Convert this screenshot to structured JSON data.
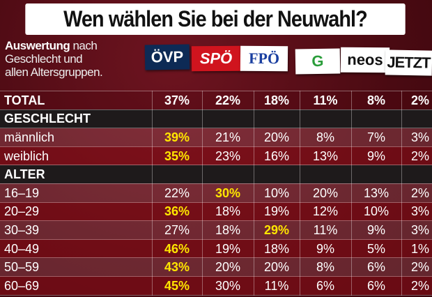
{
  "title": "Wen wählen Sie bei der Neuwahl?",
  "subtitle": {
    "bold": "Auswertung",
    "rest_line1": " nach",
    "line2": "Geschlecht und",
    "line3": "allen Altersgruppen."
  },
  "parties": [
    {
      "name": "ÖVP",
      "bg": "#0d2a55",
      "fg": "#ffffff"
    },
    {
      "name": "SPÖ",
      "bg": "#d0141e",
      "fg": "#ffffff"
    },
    {
      "name": "FPÖ",
      "bg": "#ffffff",
      "fg": "#1a3fa0"
    },
    {
      "name": "G",
      "bg": "#ffffff",
      "fg": "#2a9d3a"
    },
    {
      "name": "neos",
      "bg": "#ffffff",
      "fg": "#111111"
    },
    {
      "name": "JETZT",
      "bg": "#ffffff",
      "fg": "#111111"
    }
  ],
  "highlight_color": "#ffe600",
  "rows": [
    {
      "label": "TOTAL",
      "type": "total",
      "values": [
        "37%",
        "22%",
        "18%",
        "11%",
        "8%",
        "2%"
      ],
      "highlight": -1
    },
    {
      "label": "GESCHLECHT",
      "type": "section",
      "values": [
        "",
        "",
        "",
        "",
        "",
        ""
      ],
      "highlight": -1
    },
    {
      "label": "männlich",
      "type": "light",
      "values": [
        "39%",
        "21%",
        "20%",
        "8%",
        "7%",
        "3%"
      ],
      "highlight": 0
    },
    {
      "label": "weiblich",
      "type": "dark",
      "values": [
        "35%",
        "23%",
        "16%",
        "13%",
        "9%",
        "2%"
      ],
      "highlight": 0
    },
    {
      "label": "ALTER",
      "type": "section",
      "values": [
        "",
        "",
        "",
        "",
        "",
        ""
      ],
      "highlight": -1
    },
    {
      "label": "16–19",
      "type": "light",
      "values": [
        "22%",
        "30%",
        "10%",
        "20%",
        "13%",
        "2%"
      ],
      "highlight": 1
    },
    {
      "label": "20–29",
      "type": "dark",
      "values": [
        "36%",
        "18%",
        "19%",
        "12%",
        "10%",
        "3%"
      ],
      "highlight": 0
    },
    {
      "label": "30–39",
      "type": "light",
      "values": [
        "27%",
        "18%",
        "29%",
        "11%",
        "9%",
        "3%"
      ],
      "highlight": 2
    },
    {
      "label": "40–49",
      "type": "dark",
      "values": [
        "46%",
        "19%",
        "18%",
        "9%",
        "5%",
        "1%"
      ],
      "highlight": 0
    },
    {
      "label": "50–59",
      "type": "light",
      "values": [
        "43%",
        "20%",
        "20%",
        "8%",
        "6%",
        "2%"
      ],
      "highlight": 0
    },
    {
      "label": "60–69",
      "type": "dark",
      "values": [
        "45%",
        "30%",
        "11%",
        "6%",
        "6%",
        "2%"
      ],
      "highlight": 0
    }
  ]
}
